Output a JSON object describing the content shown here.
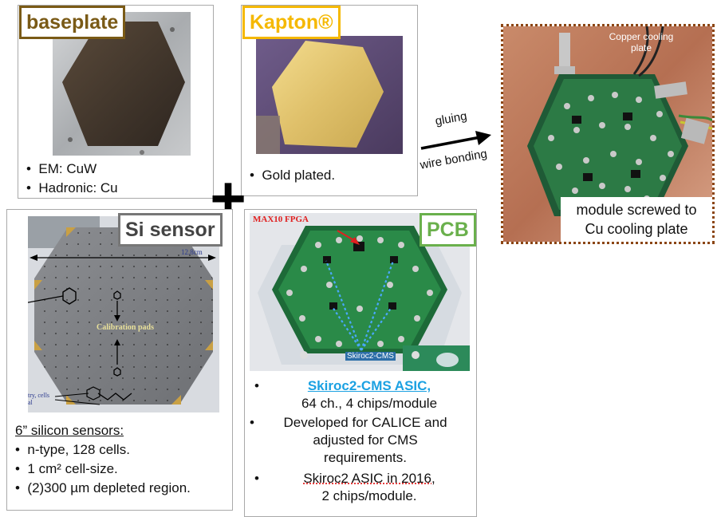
{
  "baseplate": {
    "tag": "baseplate",
    "items": [
      "EM: CuW",
      "Hadronic: Cu"
    ],
    "color": "#7a5a16"
  },
  "kapton": {
    "tag": "Kapton®",
    "items": [
      "Gold plated."
    ],
    "color": "#f5b800"
  },
  "arrow": {
    "top_label": "gluing",
    "bottom_label": "wire bonding"
  },
  "module": {
    "photo_label": "Copper cooling plate",
    "caption_line1": "module screwed to",
    "caption_line2": "Cu cooling plate",
    "border_color": "#8b4513"
  },
  "sensor": {
    "tag": "Si sensor",
    "photo_labels": {
      "width": "12.8cm",
      "calibration": "Calibration pads",
      "corner": "try, cells\nal"
    },
    "heading": "6” silicon sensors:",
    "items": [
      "n-type, 128 cells.",
      "1 cm² cell-size.",
      "(2)300 µm depleted region."
    ]
  },
  "pcb": {
    "tag": "PCB",
    "color": "#6ab04c",
    "photo_labels": {
      "fpga": "MAX10 FPGA",
      "chip": "Skiroc2-CMS"
    },
    "items": [
      {
        "bullet": "•",
        "lines": [
          "Skiroc2-CMS ASIC,",
          "64 ch., 4 chips/module"
        ]
      },
      {
        "bullet": "•",
        "lines": [
          "Developed for CALICE and",
          "adjusted for CMS",
          "requirements."
        ]
      },
      {
        "bullet": "•",
        "lines": [
          "Skiroc2 ASIC in 2016,",
          "2 chips/module."
        ]
      }
    ],
    "link_color": "#1ba1e2"
  },
  "plus": "+"
}
